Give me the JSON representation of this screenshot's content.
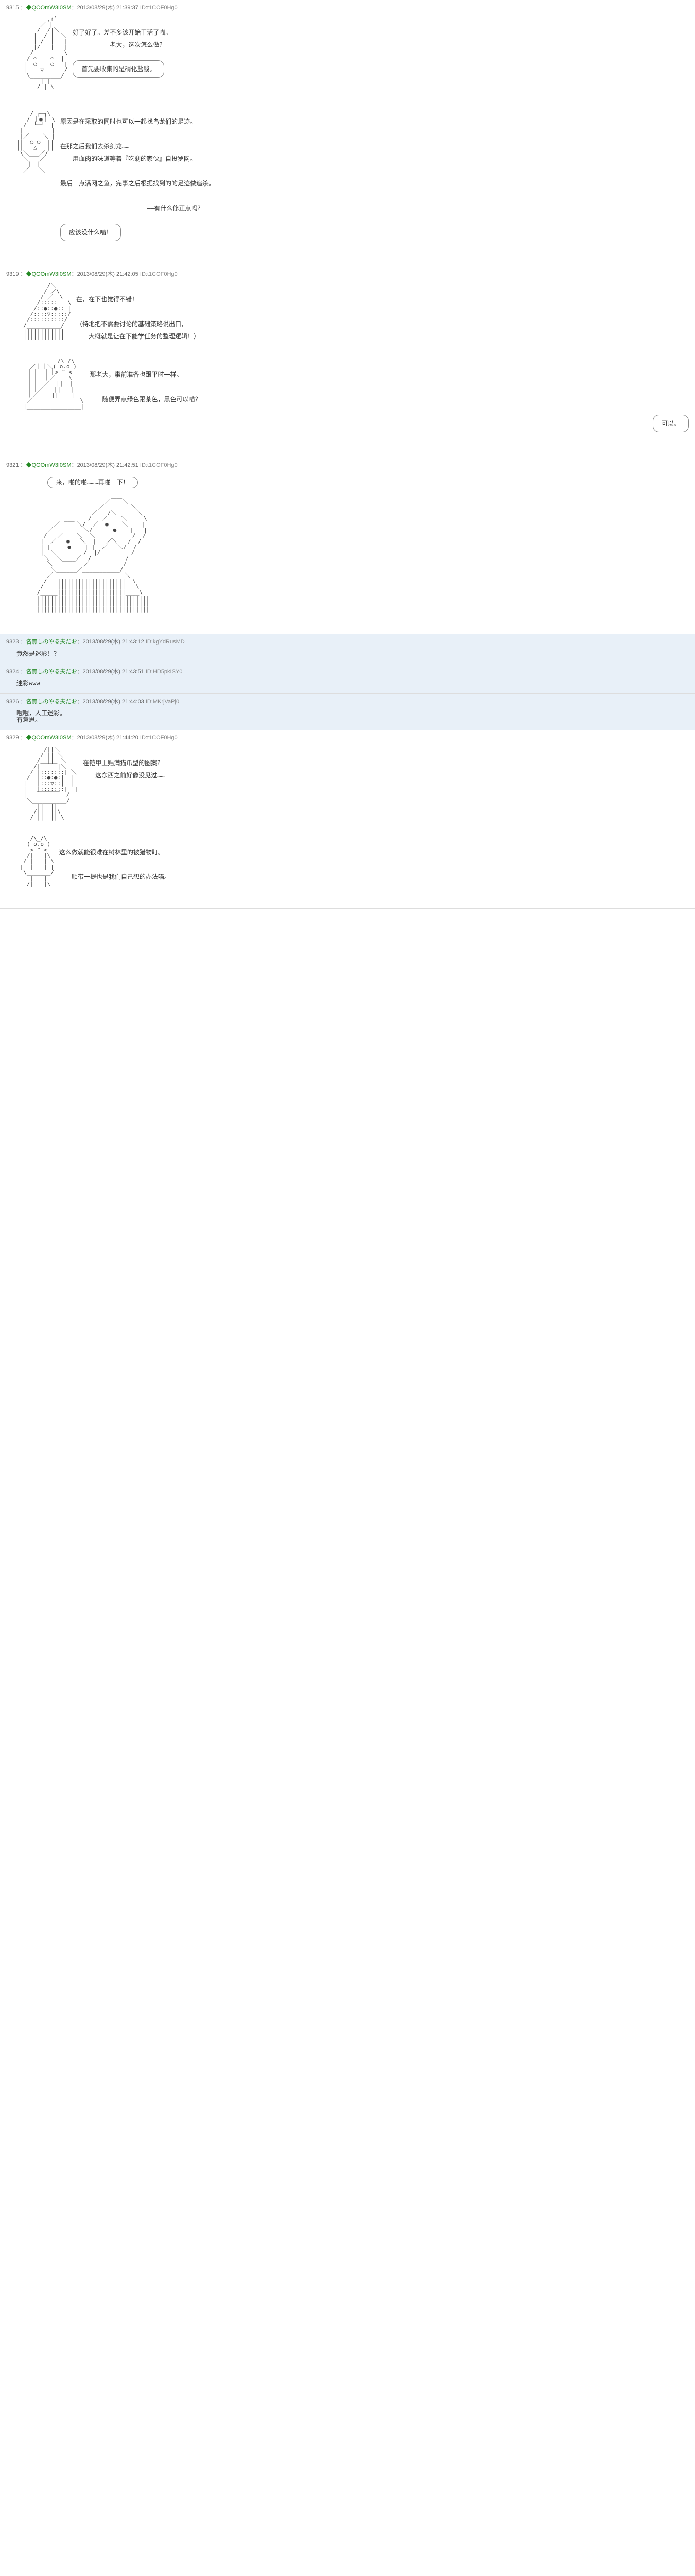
{
  "posts": [
    {
      "num": "9315",
      "name": "◆QOOmW3I0SM",
      "date": "2013/08/29(木) 21:39:37",
      "id": "ID:t1COF0Hg0",
      "reply": false,
      "blocks": [
        {
          "type": "aa-text",
          "aa": "         ,ｨ´\n       ／ |\n      /  /|＼\n     |  / |  ＼\n     | /  |   |\n     |/___|___|\n    /         \\\n   / ⌒    ⌒  |\n  |  ○    ○   |\n  |    ▽      /\n   \\_________/\n       | |\n      / | \\",
          "lines": [
            "好了好了。差不多该开始干活了喵。",
            "　　　　　　老大，这次怎么做？"
          ],
          "balloon": "首先要收集的是硝化盐酸。"
        },
        {
          "type": "aa-text",
          "aa": "      ___\n    / ┌─┐\\\n   / ｜●｜ \\\n  /  └─┘  |\n |  ＿＿   |\n |／    ＼ |\n||  ○ ○  ||\n||   △   ||\n \\＼___／/\n  ＼___／\n   ｜ ｜\n  ／   ＼",
          "lines": [
            "原因是在采取的同时也可以一起找鸟龙们的足迹。",
            "",
            "在那之后我们去杀剑龙……",
            "　　用血肉的味道等着『吃剩的家伙』自投罗网。",
            "",
            "最后一点满网之鱼，完事之后根据找到的的足迹做追杀。",
            "",
            "　　　　　　　　　　　　　　——有什么修正点吗？"
          ],
          "balloon": "应该没什么喵！"
        }
      ]
    },
    {
      "num": "9319",
      "name": "◆QOOmW3I0SM",
      "date": "2013/08/29(木) 21:42:05",
      "id": "ID:t1COF0Hg0",
      "reply": false,
      "blocks": [
        {
          "type": "aa-text",
          "aa": "         /＼\n        / ／\\\n       /_／  \\\n      /:::::   \\\n     /::●::●:: |\n    /::::▽:::::/\n   /::::::::::/\n  /__________/\n  ||||||||||||\n  ||||||||||||",
          "lines": [
            "在，在下也觉得不错！",
            "",
            "（特地把不需要讨论的基础策略说出口，",
            "　　大概就是让在下能学任务的整理逻辑！）"
          ]
        },
        {
          "type": "aa-text-balloon-right",
          "aa": "      ___   /\\_/\\\n    ／｜｜＼( o.o )\n   ｜｜｜｜｜> ^ <\n   ｜｜｜｜／    \\\n   ｜｜｜／  ||  |\n   ｜｜／   ||   |\n   ｜／____||____|\n   ／              \\\n  |________________|",
          "lines": [
            "那老大，事前准备也跟平时一样。",
            "",
            "　　随便弄点绿色跟茶色，黑色可以喵？"
          ],
          "balloon": "可以。"
        }
      ]
    },
    {
      "num": "9321",
      "name": "◆QOOmW3I0SM",
      "date": "2013/08/29(木) 21:42:51",
      "id": "ID:t1COF0Hg0",
      "reply": false,
      "blocks": [
        {
          "type": "balloon-top",
          "balloon": "来，啪的啪………再啪一下！"
        },
        {
          "type": "aa-only",
          "aa": "                          ／￣￣＼\n                        ／        ＼\n                      ／   /＼      ＼\n              ___    /   ／    ＼     \\\n           ／     ＼/  ／  ●    ＼    |\n         ／   ___   ＼/      ●    |   |\n        /   ／    ＼  ＼           /  /\n       |  ／   ●   ＼  |   ／＼   /  /\n       | |     ●    | |  ／   ＼/  /\n       |  ＼        /  |/         /\n        ＼  ＼____／  /          /\n         ＼         ／          /\n          ＼______／___________/\n         ／                     ＼\n        /   ||||||||||||||||||||  \\\n       /    ||||||||||||||||||||   \\\n      /_____||||||||||||||||||||____\\\n      |||||||||||||||||||||||||||||||||\n      |||||||||||||||||||||||||||||||||\n      |||||||||||||||||||||||||||||||||"
        }
      ]
    },
    {
      "num": "9323",
      "name": "名無しのやる夫だお",
      "date": "2013/08/29(木) 21:43:12",
      "id": "ID:kgYdRusMD",
      "reply": true,
      "text": "竟然是迷彩！？"
    },
    {
      "num": "9324",
      "name": "名無しのやる夫だお",
      "date": "2013/08/29(木) 21:43:51",
      "id": "ID:HD5pkISY0",
      "reply": true,
      "text": "迷彩www"
    },
    {
      "num": "9326",
      "name": "名無しのやる夫だお",
      "date": "2013/08/29(木) 21:44:03",
      "id": "ID:MKrjVaPj0",
      "reply": true,
      "text": "哦哦，人工迷彩。\n有意思。"
    },
    {
      "num": "9329",
      "name": "◆QOOmW3I0SM",
      "date": "2013/08/29(木) 21:44:20",
      "id": "ID:t1COF0Hg0",
      "reply": false,
      "blocks": [
        {
          "type": "aa-text",
          "aa": "        /||＼\n       / || ＼\n      /  ||  ＼\n     /|￣￣￣|＼\n    / |:::::::| ＼\n   /  |::●:●:|  |\n  |   |:::▽::|  |\n  |   |:::::::|  |\n  |   ￣￣￣￣  /\n   ＼__________/\n      ||  ||\n     /||  ||\\\n    / ||  || \\",
          "lines": [
            "在铠甲上贴满猫爪型的图案？",
            "　　这东西之前好像没见过……"
          ]
        },
        {
          "type": "aa-text",
          "aa": "    /\\_/\\\n   ( o.o )\n    > ^ <\n   /|   |\\\n  / |   | \\\n |  |___| |\n  \\_______/\n    |   |\n   /|   |\\",
          "lines": [
            "这么做就能很难在树林里的被猎物盯。",
            "",
            "　　顺带一提也是我们自己想的办法喵。"
          ]
        }
      ]
    }
  ]
}
